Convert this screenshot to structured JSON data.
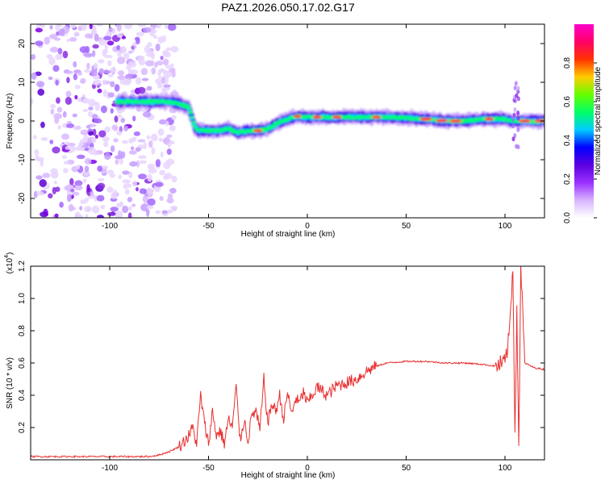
{
  "title": "PAZ1.2026.050.17.02.G17",
  "chart_data": [
    {
      "type": "heatmap",
      "name": "spectrogram",
      "xlabel": "Height of straight line (km)",
      "ylabel": "Frequency (Hz)",
      "xlim": [
        -140,
        120
      ],
      "ylim": [
        -25,
        25
      ],
      "xticks": [
        -100,
        -50,
        0,
        50,
        100
      ],
      "yticks": [
        -20,
        -10,
        0,
        10,
        20
      ],
      "ridge_x": [
        -96,
        -90,
        -80,
        -70,
        -65,
        -60,
        -57,
        -55,
        -52,
        -48,
        -45,
        -40,
        -35,
        -30,
        -25,
        -20,
        -15,
        -10,
        -5,
        0,
        10,
        20,
        30,
        40,
        50,
        60,
        70,
        80,
        90,
        100,
        103,
        106,
        108,
        112,
        120
      ],
      "ridge_y": [
        5,
        5,
        5,
        5,
        4.5,
        3.5,
        -1.5,
        -2.5,
        -2.5,
        -2.5,
        -2.5,
        -2,
        -3,
        -2.5,
        -2.5,
        -2,
        -0.5,
        0.5,
        1.2,
        1,
        1,
        1,
        1,
        1,
        0.8,
        0.5,
        0,
        0,
        0.5,
        0.5,
        0,
        0,
        0,
        0,
        0
      ],
      "noise_region": [
        -140,
        -70
      ],
      "colorbar": {
        "label": "Normalized spectral amplitude",
        "range": [
          0,
          1
        ],
        "ticks": [
          "0.0",
          "0.2",
          "0.4",
          "0.6",
          "0.8"
        ],
        "colors": [
          "#ffffff",
          "#d8b4fe",
          "#9b30ff",
          "#5b00e0",
          "#0000ff",
          "#00ccff",
          "#00ff66",
          "#66ff00",
          "#ffcc00",
          "#ff3300",
          "#ff0066",
          "#ff00cc"
        ]
      }
    },
    {
      "type": "line",
      "name": "snr",
      "xlabel": "Height of straight line (km)",
      "ylabel": "SNR (10 * v/v)",
      "scale_label": "(x10",
      "scale_exp": "4",
      "scale_close": ")",
      "xlim": [
        -140,
        120
      ],
      "ylim": [
        0,
        1.2
      ],
      "xticks": [
        -100,
        -50,
        0,
        50,
        100
      ],
      "yticks": [
        "0.2",
        "0.4",
        "0.6",
        "0.8",
        "1.0",
        "1.2"
      ],
      "color": "#e83030",
      "x": [
        -140,
        -120,
        -100,
        -80,
        -75,
        -70,
        -65,
        -62,
        -60,
        -58,
        -56,
        -54,
        -52,
        -50,
        -48,
        -46,
        -44,
        -42,
        -40,
        -38,
        -36,
        -34,
        -32,
        -30,
        -28,
        -26,
        -24,
        -22,
        -20,
        -18,
        -16,
        -14,
        -12,
        -10,
        -8,
        -6,
        -4,
        -2,
        0,
        5,
        10,
        15,
        20,
        25,
        30,
        35,
        40,
        50,
        60,
        70,
        80,
        90,
        95,
        100,
        102,
        104,
        105,
        106,
        107,
        108,
        110,
        115,
        120
      ],
      "y": [
        0.02,
        0.02,
        0.02,
        0.02,
        0.03,
        0.05,
        0.08,
        0.12,
        0.15,
        0.2,
        0.1,
        0.4,
        0.22,
        0.1,
        0.3,
        0.15,
        0.18,
        0.1,
        0.25,
        0.2,
        0.45,
        0.12,
        0.25,
        0.12,
        0.28,
        0.3,
        0.18,
        0.5,
        0.22,
        0.35,
        0.3,
        0.4,
        0.25,
        0.42,
        0.28,
        0.38,
        0.35,
        0.42,
        0.35,
        0.45,
        0.4,
        0.46,
        0.48,
        0.5,
        0.55,
        0.58,
        0.6,
        0.61,
        0.61,
        0.6,
        0.6,
        0.59,
        0.58,
        0.6,
        0.75,
        1.2,
        0.2,
        0.9,
        0.1,
        1.2,
        0.6,
        0.57,
        0.56
      ]
    }
  ]
}
